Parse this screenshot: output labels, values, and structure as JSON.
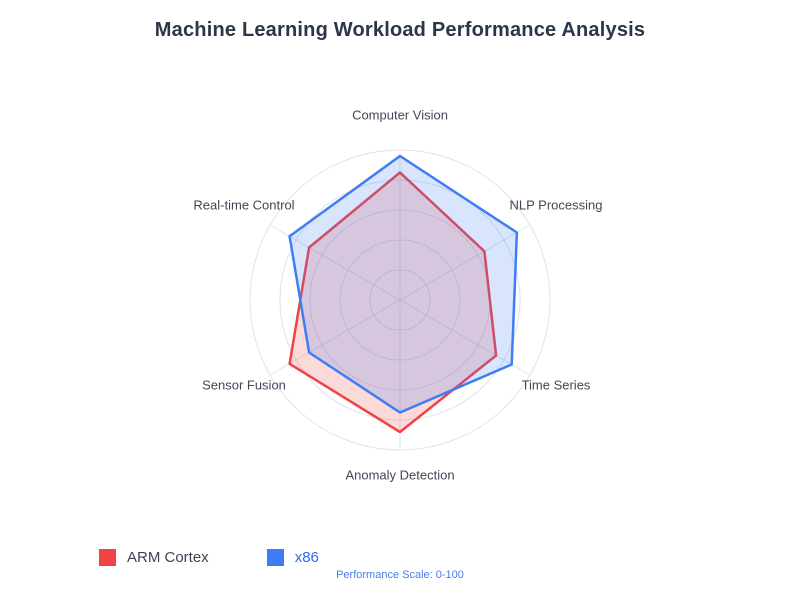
{
  "page": {
    "title": "Machine Learning Workload Performance Analysis"
  },
  "chart_data": {
    "type": "radar",
    "title": "Machine Learning Workload Performance Analysis",
    "categories": [
      "Computer Vision",
      "NLP Processing",
      "Time Series",
      "Anomaly Detection",
      "Sensor Fusion",
      "Real-time Control"
    ],
    "series": [
      {
        "name": "ARM Cortex",
        "color": "#ef4444",
        "fill_opacity": 0.2,
        "label_color": "#3c434f",
        "values": [
          85,
          65,
          74,
          88,
          85,
          70
        ]
      },
      {
        "name": "x86",
        "color": "#3f7df4",
        "fill_opacity": 0.2,
        "label_color": "#2d6ce4",
        "values": [
          96,
          90,
          86,
          75,
          70,
          85
        ]
      }
    ],
    "scale": {
      "min": 0,
      "max": 100,
      "grid_step": 20
    },
    "grid": true,
    "grid_color": "#dde2f0",
    "legend_position": "bottom-left",
    "footer_note": "Performance Scale: 0-100"
  }
}
